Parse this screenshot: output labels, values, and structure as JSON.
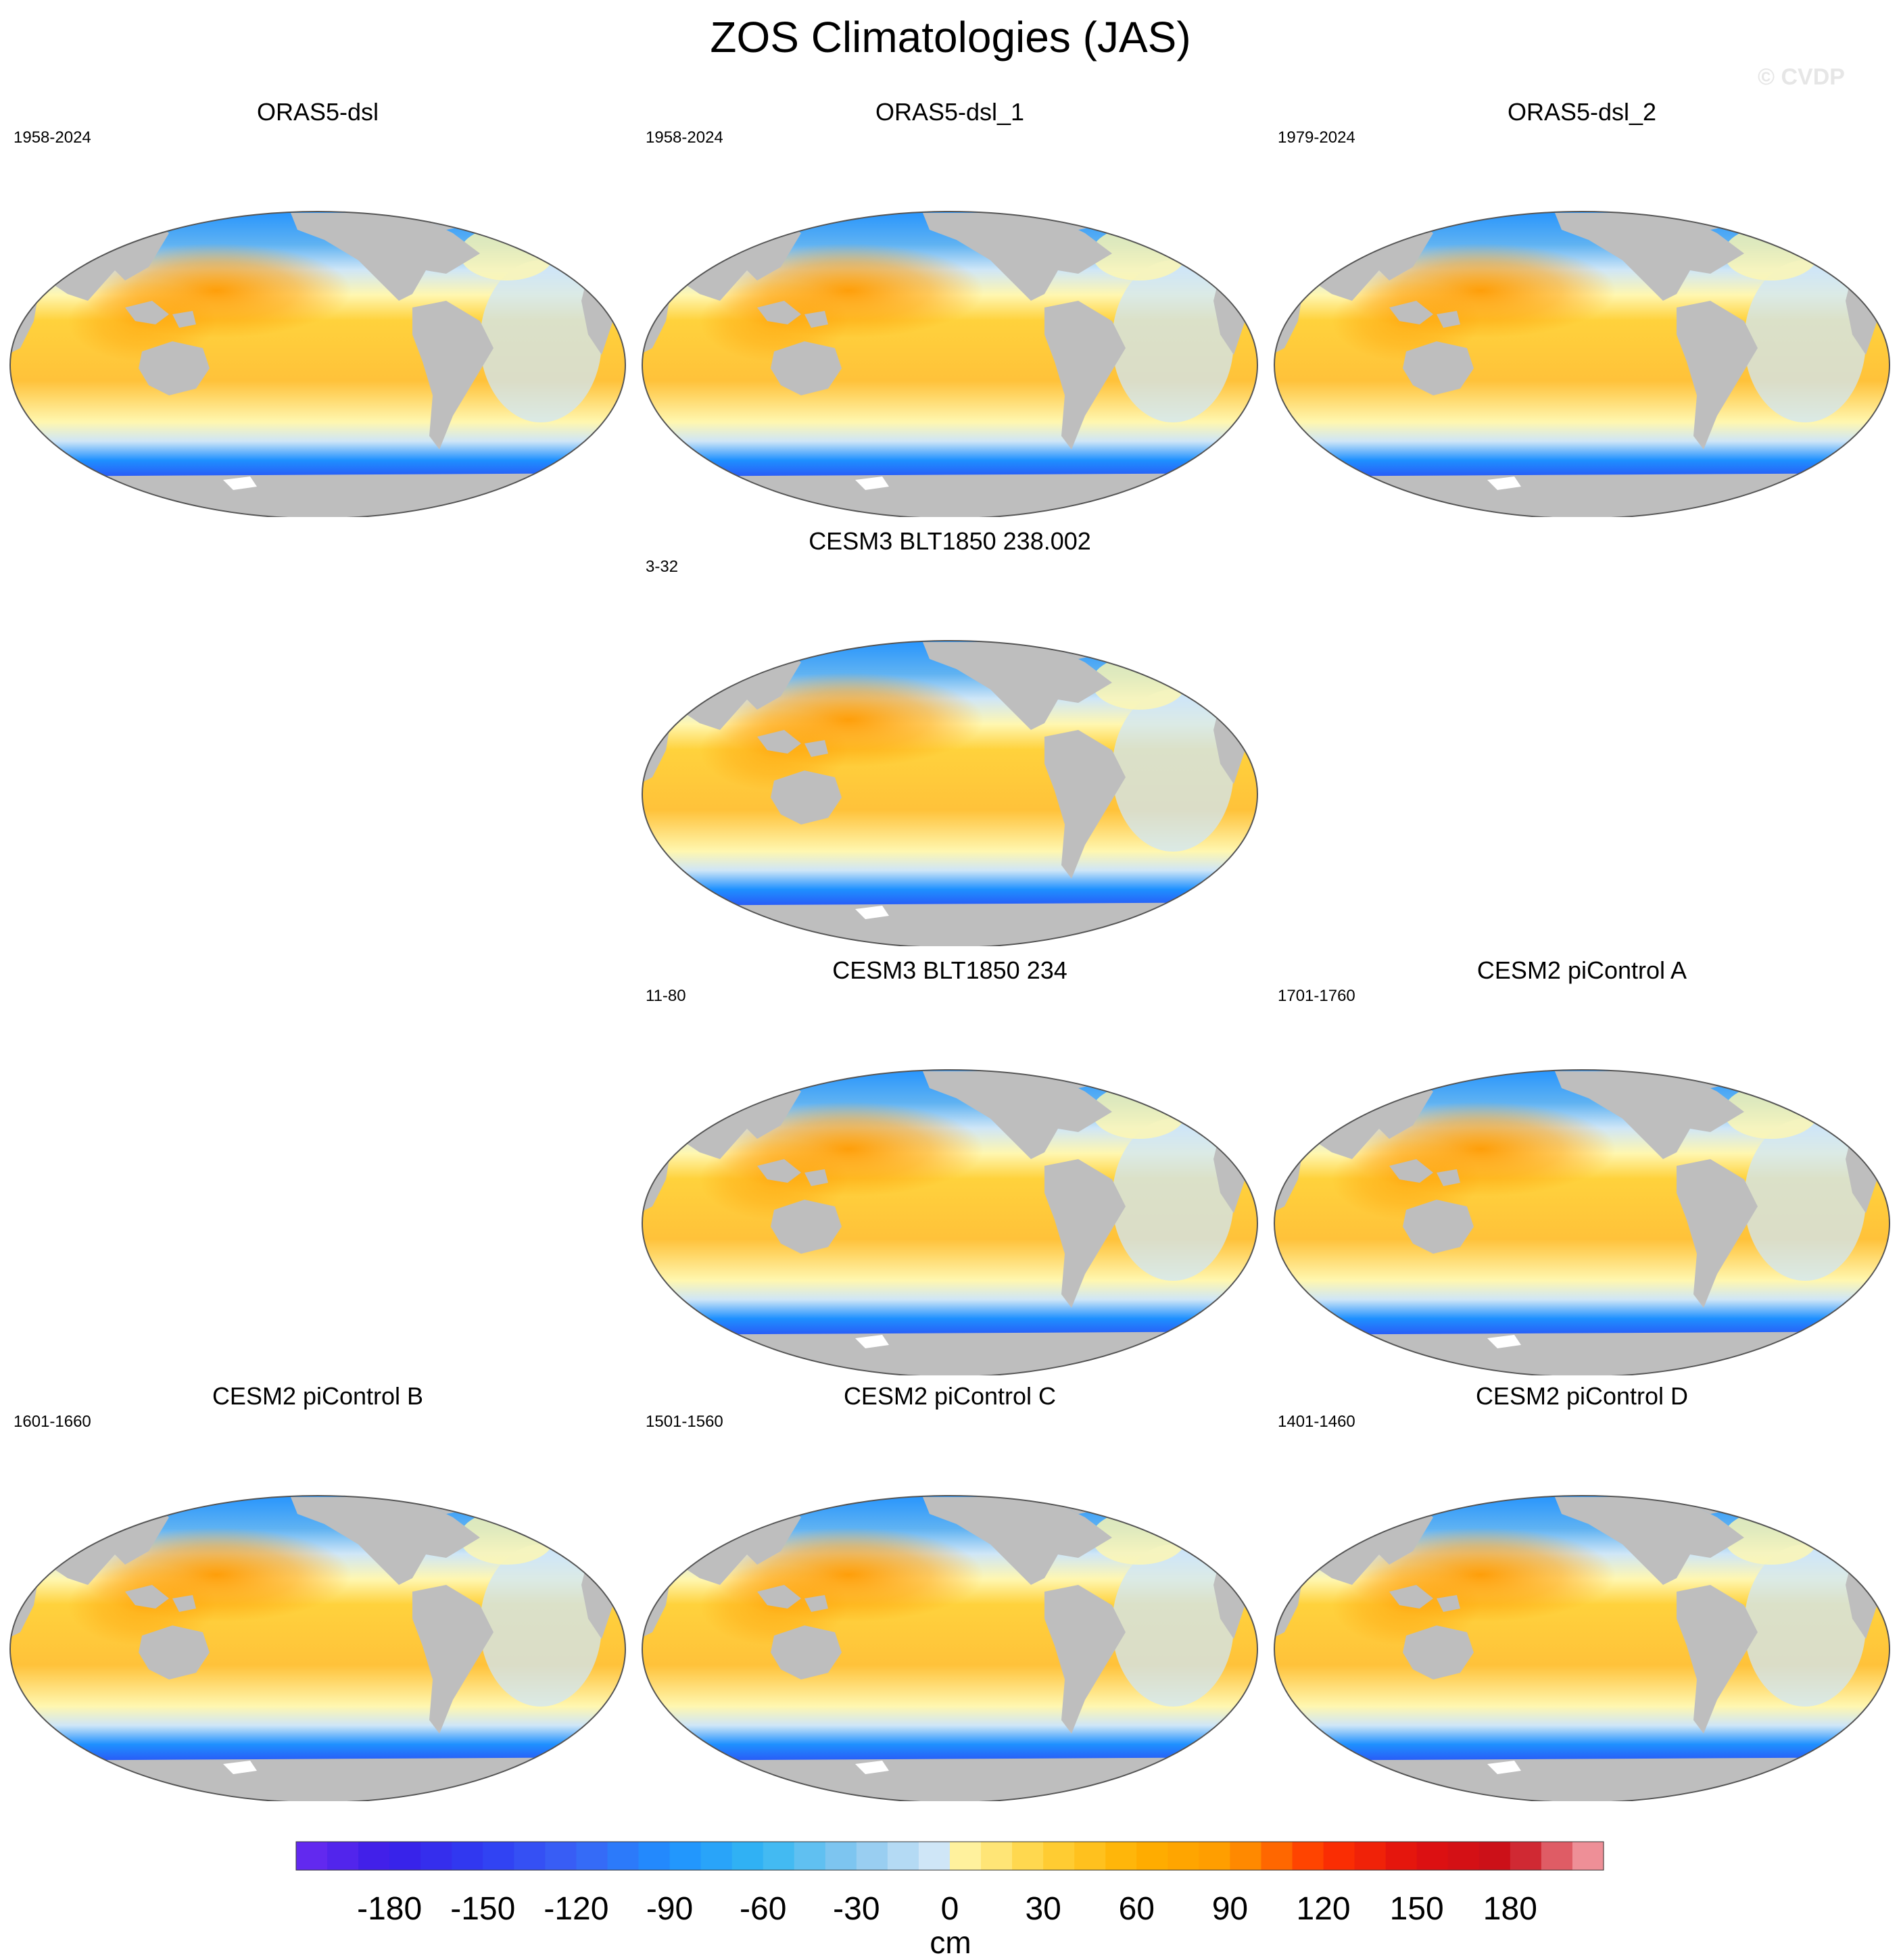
{
  "title": "ZOS Climatologies (JAS)",
  "watermark": "© CVDP",
  "panels": [
    {
      "title": "ORAS5-dsl",
      "range": "1958-2024"
    },
    {
      "title": "ORAS5-dsl_1",
      "range": "1958-2024"
    },
    {
      "title": "ORAS5-dsl_2",
      "range": "1979-2024"
    },
    {
      "title": "CESM3 BLT1850 238.002",
      "range": "3-32"
    },
    {
      "title": "CESM3 BLT1850 234",
      "range": "11-80"
    },
    {
      "title": "CESM2 piControl A",
      "range": "1701-1760"
    },
    {
      "title": "CESM2 piControl B",
      "range": "1601-1660"
    },
    {
      "title": "CESM2 piControl C",
      "range": "1501-1560"
    },
    {
      "title": "CESM2 piControl D",
      "range": "1401-1460"
    }
  ],
  "colorbar": {
    "unit": "cm",
    "ticks": [
      "-180",
      "-150",
      "-120",
      "-90",
      "-60",
      "-30",
      "0",
      "30",
      "60",
      "90",
      "120",
      "150",
      "180"
    ],
    "min": -210,
    "max": 210,
    "step": 10
  },
  "colors": {
    "land": "#bebebe",
    "antarctica": "#ffffff",
    "deep_negative": "#6a2bf0",
    "strong_negative": "#2f3df2",
    "blue": "#1e90ff",
    "light_blue": "#cfe6f7",
    "pale_yellow": "#fff7b0",
    "yellow": "#ffd23c",
    "orange": "#ff9a00",
    "red": "#e01010",
    "pink": "#f6a8b0"
  }
}
